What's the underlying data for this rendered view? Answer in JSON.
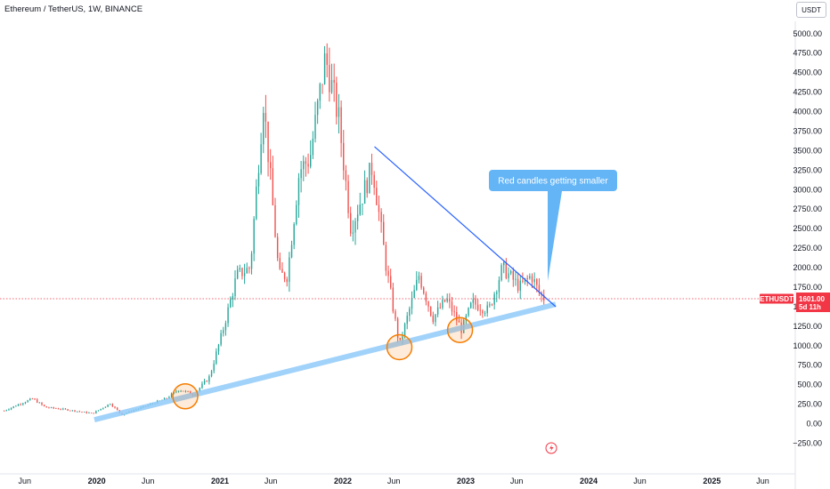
{
  "header": {
    "title": "Ethereum / TetherUS, 1W, BINANCE",
    "currency_button": "USDT"
  },
  "chart_data": {
    "type": "candlestick",
    "symbol": "ETHUSDT",
    "timeframe": "1W",
    "exchange": "BINANCE",
    "y_ticks": [
      "5000.00",
      "4750.00",
      "4500.00",
      "4250.00",
      "4000.00",
      "3750.00",
      "3500.00",
      "3250.00",
      "3000.00",
      "2750.00",
      "2500.00",
      "2250.00",
      "2000.00",
      "1750.00",
      "1500.00",
      "1250.00",
      "1000.00",
      "750.00",
      "500.00",
      "250.00",
      "0.00",
      "−250.00"
    ],
    "ylim": [
      -250,
      5000
    ],
    "x_ticks": [
      "Jun",
      "2020",
      "Jun",
      "2021",
      "Jun",
      "2022",
      "Jun",
      "2023",
      "Jun",
      "2024",
      "Jun",
      "2025",
      "Jun"
    ],
    "x_tick_dates": [
      "2019-06-01",
      "2020-01-01",
      "2020-06-01",
      "2021-01-01",
      "2021-06-01",
      "2022-01-01",
      "2022-06-01",
      "2023-01-01",
      "2023-06-01",
      "2024-01-01",
      "2024-06-01",
      "2025-01-01",
      "2025-06-01"
    ],
    "price_series": [
      {
        "date": "2019-04-01",
        "close": 165
      },
      {
        "date": "2019-05-15",
        "close": 250
      },
      {
        "date": "2019-06-25",
        "close": 320
      },
      {
        "date": "2019-08-01",
        "close": 210
      },
      {
        "date": "2019-10-01",
        "close": 180
      },
      {
        "date": "2019-12-20",
        "close": 130
      },
      {
        "date": "2020-02-10",
        "close": 260
      },
      {
        "date": "2020-03-15",
        "close": 115
      },
      {
        "date": "2020-05-15",
        "close": 210
      },
      {
        "date": "2020-07-25",
        "close": 320
      },
      {
        "date": "2020-09-01",
        "close": 440
      },
      {
        "date": "2020-10-15",
        "close": 370
      },
      {
        "date": "2020-12-01",
        "close": 600
      },
      {
        "date": "2021-01-10",
        "close": 1200
      },
      {
        "date": "2021-02-20",
        "close": 1900
      },
      {
        "date": "2021-04-01",
        "close": 2000
      },
      {
        "date": "2021-05-10",
        "close": 4150
      },
      {
        "date": "2021-06-25",
        "close": 1900
      },
      {
        "date": "2021-07-20",
        "close": 1900
      },
      {
        "date": "2021-08-25",
        "close": 3250
      },
      {
        "date": "2021-09-25",
        "close": 3400
      },
      {
        "date": "2021-11-10",
        "close": 4700
      },
      {
        "date": "2021-12-20",
        "close": 3900
      },
      {
        "date": "2022-01-25",
        "close": 2500
      },
      {
        "date": "2022-03-30",
        "close": 3300
      },
      {
        "date": "2022-05-10",
        "close": 2000
      },
      {
        "date": "2022-06-18",
        "close": 1000
      },
      {
        "date": "2022-08-15",
        "close": 1900
      },
      {
        "date": "2022-09-25",
        "close": 1350
      },
      {
        "date": "2022-11-05",
        "close": 1600
      },
      {
        "date": "2022-12-20",
        "close": 1200
      },
      {
        "date": "2023-01-20",
        "close": 1550
      },
      {
        "date": "2023-03-10",
        "close": 1450
      },
      {
        "date": "2023-04-20",
        "close": 2000
      },
      {
        "date": "2023-06-10",
        "close": 1750
      },
      {
        "date": "2023-07-15",
        "close": 1900
      },
      {
        "date": "2023-08-10",
        "close": 1650
      },
      {
        "date": "2023-08-25",
        "close": 1600
      }
    ],
    "last_price": {
      "label": "ETHUSDT",
      "value": "1601.00",
      "countdown": "5d 11h",
      "value_num": 1601
    },
    "annotations": {
      "callout_text": "Red candles getting smaller",
      "resistance_line": {
        "start": {
          "date": "2022-04-05",
          "price": 3550
        },
        "end": {
          "date": "2023-09-25",
          "price": 1500
        }
      },
      "support_channel": {
        "start": {
          "date": "2019-12-25",
          "price": 50
        },
        "end": {
          "date": "2023-09-25",
          "price": 1530
        }
      },
      "circled_points": [
        {
          "date": "2020-09-20",
          "price": 350
        },
        {
          "date": "2022-06-18",
          "price": 980
        },
        {
          "date": "2022-12-15",
          "price": 1200
        }
      ]
    },
    "grid": false,
    "colors": {
      "up": "#26a69a",
      "down": "#ef5350",
      "trendline": "#2962ff",
      "channel": "#90caf9",
      "circle": "#f57c00",
      "callout": "#64b5f6",
      "price_tag": "#f23645"
    }
  }
}
